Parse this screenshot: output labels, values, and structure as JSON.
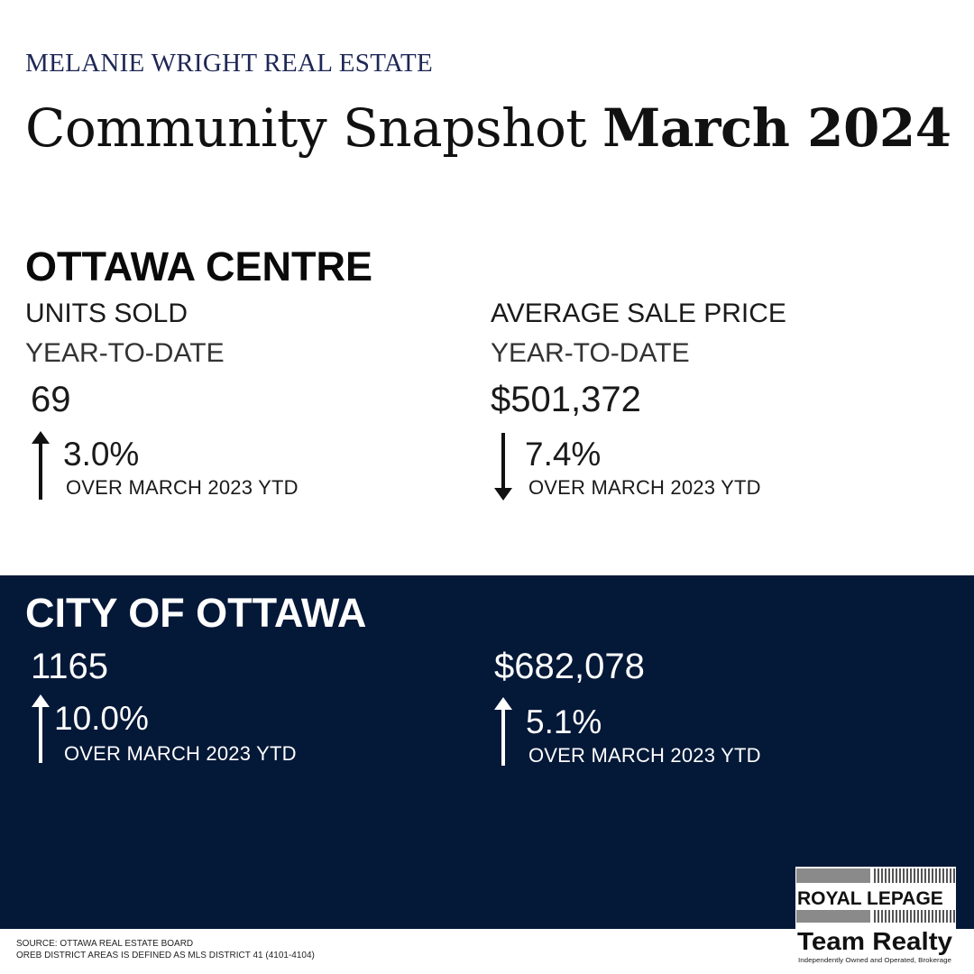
{
  "header": {
    "brand": "MELANIE WRIGHT REAL ESTATE",
    "title_regular": "Community Snapshot ",
    "title_bold": "March 2024"
  },
  "ottawa_centre": {
    "heading": "OTTAWA CENTRE",
    "units": {
      "label": "UNITS SOLD",
      "period": "YEAR-TO-DATE",
      "value": "69",
      "change": "3.0%",
      "direction": "up",
      "comparison": "OVER MARCH 2023 YTD"
    },
    "price": {
      "label": "AVERAGE SALE PRICE",
      "period": "YEAR-TO-DATE",
      "value": "$501,372",
      "change": "7.4%",
      "direction": "down",
      "comparison": "OVER MARCH 2023 YTD"
    }
  },
  "city_of_ottawa": {
    "heading": "CITY OF OTTAWA",
    "background": "#041838",
    "units": {
      "value": "1165",
      "change": "10.0%",
      "direction": "up",
      "comparison": "OVER MARCH 2023 YTD"
    },
    "price": {
      "value": "$682,078",
      "change": "5.1%",
      "direction": "up",
      "comparison": "OVER MARCH 2023 YTD"
    }
  },
  "footer": {
    "source": "SOURCE: OTTAWA REAL ESTATE BOARD",
    "note": "OREB DISTRICT AREAS IS DEFINED AS MLS DISTRICT 41 (4101-4104)"
  },
  "logo": {
    "line1": "ROYAL LEPAGE",
    "line2": "Team Realty",
    "tagline": "Independently Owned and Operated, Brokerage"
  },
  "icons": {
    "up": "arrow-up-icon",
    "down": "arrow-down-icon"
  }
}
